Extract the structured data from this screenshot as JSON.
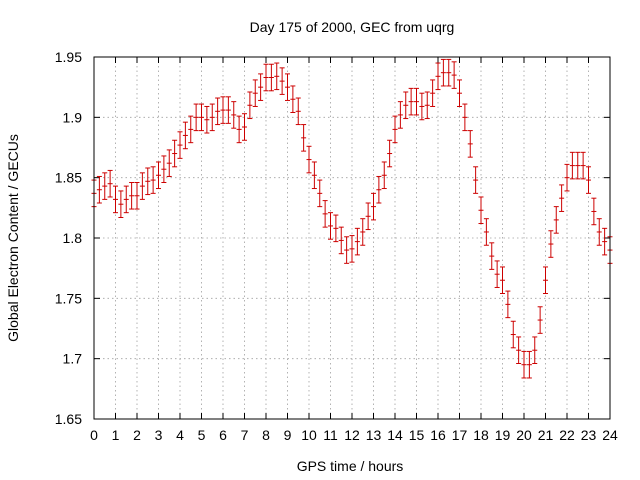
{
  "chart_data": {
    "type": "scatter",
    "title": "Day 175 of 2000, GEC from uqrg",
    "xlabel": "GPS time / hours",
    "ylabel": "Global Electron Content / GECUs",
    "xlim": [
      0,
      24
    ],
    "ylim": [
      1.65,
      1.95
    ],
    "xticks": [
      "0",
      "1",
      "2",
      "3",
      "4",
      "5",
      "6",
      "7",
      "8",
      "9",
      "10",
      "11",
      "12",
      "13",
      "14",
      "15",
      "16",
      "17",
      "18",
      "19",
      "20",
      "21",
      "22",
      "23",
      "24"
    ],
    "yticks": [
      "1.65",
      "1.7",
      "1.75",
      "1.8",
      "1.85",
      "1.9",
      "1.95"
    ],
    "grid": true,
    "error_bars": true,
    "error_half_width": 0.011,
    "series": [
      {
        "color": "#cc0000",
        "x": [
          0.0,
          0.25,
          0.5,
          0.75,
          1.0,
          1.25,
          1.5,
          1.75,
          2.0,
          2.25,
          2.5,
          2.75,
          3.0,
          3.25,
          3.5,
          3.75,
          4.0,
          4.25,
          4.5,
          4.75,
          5.0,
          5.25,
          5.5,
          5.75,
          6.0,
          6.25,
          6.5,
          6.75,
          7.0,
          7.25,
          7.5,
          7.75,
          8.0,
          8.25,
          8.5,
          8.75,
          9.0,
          9.25,
          9.5,
          9.75,
          10.0,
          10.25,
          10.5,
          10.75,
          11.0,
          11.25,
          11.5,
          11.75,
          12.0,
          12.25,
          12.5,
          12.75,
          13.0,
          13.25,
          13.5,
          13.75,
          14.0,
          14.25,
          14.5,
          14.75,
          15.0,
          15.25,
          15.5,
          15.75,
          16.0,
          16.25,
          16.5,
          16.75,
          17.0,
          17.25,
          17.5,
          17.75,
          18.0,
          18.25,
          18.5,
          18.75,
          19.0,
          19.25,
          19.5,
          19.75,
          20.0,
          20.25,
          20.5,
          20.75,
          21.0,
          21.25,
          21.5,
          21.75,
          22.0,
          22.25,
          22.5,
          22.75,
          23.0,
          23.25,
          23.5,
          23.75,
          24.0
        ],
        "y": [
          1.837,
          1.84,
          1.843,
          1.845,
          1.832,
          1.828,
          1.832,
          1.835,
          1.835,
          1.843,
          1.847,
          1.848,
          1.852,
          1.857,
          1.862,
          1.87,
          1.877,
          1.885,
          1.89,
          1.9,
          1.9,
          1.898,
          1.9,
          1.905,
          1.906,
          1.906,
          1.902,
          1.89,
          1.892,
          1.91,
          1.92,
          1.925,
          1.933,
          1.933,
          1.934,
          1.93,
          1.925,
          1.915,
          1.905,
          1.883,
          1.865,
          1.852,
          1.837,
          1.82,
          1.81,
          1.808,
          1.798,
          1.79,
          1.791,
          1.797,
          1.805,
          1.818,
          1.826,
          1.84,
          1.852,
          1.87,
          1.89,
          1.902,
          1.91,
          1.913,
          1.913,
          1.909,
          1.91,
          1.92,
          1.934,
          1.937,
          1.937,
          1.935,
          1.92,
          1.9,
          1.878,
          1.848,
          1.823,
          1.805,
          1.785,
          1.77,
          1.765,
          1.745,
          1.72,
          1.707,
          1.695,
          1.695,
          1.707,
          1.732,
          1.765,
          1.795,
          1.815,
          1.833,
          1.85,
          1.86,
          1.86,
          1.86,
          1.848,
          1.822,
          1.805,
          1.797,
          1.79
        ]
      }
    ]
  }
}
